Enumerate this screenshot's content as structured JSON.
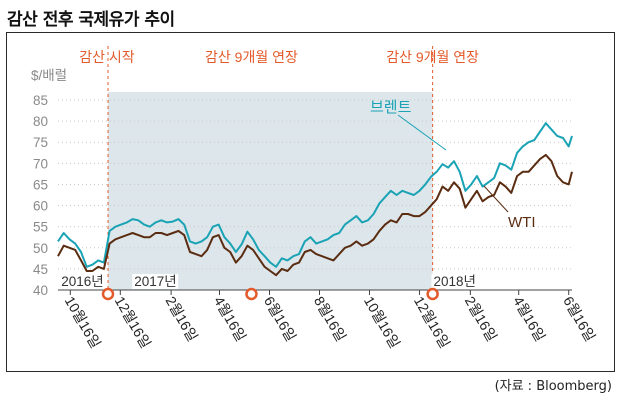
{
  "header": {
    "title": "감산 전후 국제유가 추이"
  },
  "source": "(자료 : Bloomberg)",
  "colors": {
    "brent": "#1aa3b5",
    "wti": "#5a2d12",
    "shade": "#dde6ea",
    "event": "#e35a2b",
    "grid": "#c9c9c9"
  },
  "chart_data": {
    "type": "line",
    "title": "감산 전후 국제유가 추이",
    "ylabel": "$/배럴",
    "ylim": [
      40,
      85
    ],
    "yticks": [
      40,
      45,
      50,
      55,
      60,
      65,
      70,
      75,
      80,
      85
    ],
    "grid": "horizontal dotted",
    "xlim": [
      "2016-10-01",
      "2018-06-20"
    ],
    "xticks": [
      {
        "date": "2016-10-16",
        "label": "10월16일"
      },
      {
        "date": "2016-12-16",
        "label": "12월16일"
      },
      {
        "date": "2017-02-16",
        "label": "2월16일"
      },
      {
        "date": "2017-04-16",
        "label": "4월16일"
      },
      {
        "date": "2017-06-16",
        "label": "6월16일"
      },
      {
        "date": "2017-08-16",
        "label": "8월16일"
      },
      {
        "date": "2017-10-16",
        "label": "10월16일"
      },
      {
        "date": "2017-12-16",
        "label": "12월16일"
      },
      {
        "date": "2018-02-16",
        "label": "2월16일"
      },
      {
        "date": "2018-04-16",
        "label": "4월16일"
      },
      {
        "date": "2018-06-16",
        "label": "6월16일"
      }
    ],
    "year_labels": [
      {
        "date": "2016-10-05",
        "label": "2016년"
      },
      {
        "date": "2017-01-02",
        "label": "2017년"
      },
      {
        "date": "2018-01-02",
        "label": "2018년"
      }
    ],
    "shaded_range": [
      "2016-12-01",
      "2018-01-01"
    ],
    "events": [
      {
        "date": "2016-12-01",
        "label": "감산 시작"
      },
      {
        "date": "2017-05-25",
        "label": "감산 9개월 연장"
      },
      {
        "date": "2018-01-01",
        "label": "감산 9개월 연장"
      }
    ],
    "series": [
      {
        "name": "브렌트",
        "dates": [
          "2016-10-01",
          "2016-10-08",
          "2016-10-15",
          "2016-10-22",
          "2016-10-29",
          "2016-11-05",
          "2016-11-12",
          "2016-11-19",
          "2016-11-26",
          "2016-12-03",
          "2016-12-10",
          "2016-12-17",
          "2016-12-24",
          "2016-12-31",
          "2017-01-07",
          "2017-01-14",
          "2017-01-21",
          "2017-01-28",
          "2017-02-04",
          "2017-02-11",
          "2017-02-18",
          "2017-02-25",
          "2017-03-04",
          "2017-03-11",
          "2017-03-18",
          "2017-03-25",
          "2017-04-01",
          "2017-04-08",
          "2017-04-15",
          "2017-04-22",
          "2017-04-29",
          "2017-05-06",
          "2017-05-13",
          "2017-05-20",
          "2017-05-27",
          "2017-06-03",
          "2017-06-10",
          "2017-06-17",
          "2017-06-24",
          "2017-07-01",
          "2017-07-08",
          "2017-07-15",
          "2017-07-22",
          "2017-07-29",
          "2017-08-05",
          "2017-08-12",
          "2017-08-19",
          "2017-08-26",
          "2017-09-02",
          "2017-09-09",
          "2017-09-16",
          "2017-09-23",
          "2017-09-30",
          "2017-10-07",
          "2017-10-14",
          "2017-10-21",
          "2017-10-28",
          "2017-11-04",
          "2017-11-11",
          "2017-11-18",
          "2017-11-25",
          "2017-12-02",
          "2017-12-09",
          "2017-12-16",
          "2017-12-23",
          "2017-12-30",
          "2018-01-06",
          "2018-01-13",
          "2018-01-20",
          "2018-01-27",
          "2018-02-03",
          "2018-02-10",
          "2018-02-17",
          "2018-02-24",
          "2018-03-03",
          "2018-03-10",
          "2018-03-17",
          "2018-03-24",
          "2018-03-31",
          "2018-04-07",
          "2018-04-14",
          "2018-04-21",
          "2018-04-28",
          "2018-05-05",
          "2018-05-12",
          "2018-05-19",
          "2018-05-26",
          "2018-06-02",
          "2018-06-09",
          "2018-06-16",
          "2018-06-20"
        ],
        "values": [
          51.5,
          53.5,
          52.0,
          51.0,
          49.0,
          45.5,
          46.0,
          47.0,
          46.5,
          54.0,
          55.0,
          55.5,
          56.0,
          56.8,
          56.5,
          55.5,
          55.0,
          56.0,
          56.5,
          56.0,
          56.2,
          56.8,
          55.5,
          51.5,
          51.0,
          51.5,
          52.5,
          55.0,
          55.5,
          52.5,
          51.0,
          49.0,
          50.8,
          53.8,
          52.0,
          49.5,
          48.0,
          46.5,
          45.5,
          47.5,
          47.0,
          48.0,
          48.5,
          51.5,
          52.5,
          51.0,
          51.5,
          52.0,
          53.0,
          53.5,
          55.5,
          56.5,
          57.5,
          56.0,
          56.5,
          58.0,
          60.5,
          62.0,
          63.5,
          62.5,
          63.5,
          63.0,
          62.5,
          63.5,
          65.0,
          66.8,
          68.0,
          69.8,
          69.0,
          70.5,
          68.0,
          63.5,
          65.0,
          67.0,
          64.5,
          65.5,
          66.5,
          70.0,
          69.5,
          68.5,
          72.5,
          74.0,
          75.0,
          75.5,
          77.5,
          79.5,
          78.0,
          76.5,
          76.0,
          74.0,
          76.5
        ]
      },
      {
        "name": "WTI",
        "dates": [
          "2016-10-01",
          "2016-10-08",
          "2016-10-15",
          "2016-10-22",
          "2016-10-29",
          "2016-11-05",
          "2016-11-12",
          "2016-11-19",
          "2016-11-26",
          "2016-12-03",
          "2016-12-10",
          "2016-12-17",
          "2016-12-24",
          "2016-12-31",
          "2017-01-07",
          "2017-01-14",
          "2017-01-21",
          "2017-01-28",
          "2017-02-04",
          "2017-02-11",
          "2017-02-18",
          "2017-02-25",
          "2017-03-04",
          "2017-03-11",
          "2017-03-18",
          "2017-03-25",
          "2017-04-01",
          "2017-04-08",
          "2017-04-15",
          "2017-04-22",
          "2017-04-29",
          "2017-05-06",
          "2017-05-13",
          "2017-05-20",
          "2017-05-27",
          "2017-06-03",
          "2017-06-10",
          "2017-06-17",
          "2017-06-24",
          "2017-07-01",
          "2017-07-08",
          "2017-07-15",
          "2017-07-22",
          "2017-07-29",
          "2017-08-05",
          "2017-08-12",
          "2017-08-19",
          "2017-08-26",
          "2017-09-02",
          "2017-09-09",
          "2017-09-16",
          "2017-09-23",
          "2017-09-30",
          "2017-10-07",
          "2017-10-14",
          "2017-10-21",
          "2017-10-28",
          "2017-11-04",
          "2017-11-11",
          "2017-11-18",
          "2017-11-25",
          "2017-12-02",
          "2017-12-09",
          "2017-12-16",
          "2017-12-23",
          "2017-12-30",
          "2018-01-06",
          "2018-01-13",
          "2018-01-20",
          "2018-01-27",
          "2018-02-03",
          "2018-02-10",
          "2018-02-17",
          "2018-02-24",
          "2018-03-03",
          "2018-03-10",
          "2018-03-17",
          "2018-03-24",
          "2018-03-31",
          "2018-04-07",
          "2018-04-14",
          "2018-04-21",
          "2018-04-28",
          "2018-05-05",
          "2018-05-12",
          "2018-05-19",
          "2018-05-26",
          "2018-06-02",
          "2018-06-09",
          "2018-06-16",
          "2018-06-20"
        ],
        "values": [
          48.0,
          50.5,
          50.0,
          49.5,
          47.0,
          44.5,
          44.5,
          45.5,
          45.0,
          51.0,
          52.0,
          52.5,
          53.0,
          53.5,
          53.0,
          52.5,
          52.5,
          53.5,
          53.5,
          53.0,
          53.5,
          54.0,
          53.0,
          49.0,
          48.5,
          48.0,
          49.5,
          52.5,
          53.0,
          50.0,
          49.0,
          46.5,
          48.0,
          50.5,
          49.5,
          47.5,
          45.5,
          44.5,
          43.5,
          45.0,
          44.5,
          46.0,
          46.5,
          49.0,
          49.5,
          48.5,
          48.0,
          47.5,
          47.0,
          48.5,
          50.0,
          50.5,
          51.5,
          50.5,
          51.0,
          52.0,
          54.0,
          55.5,
          56.5,
          56.0,
          58.0,
          58.0,
          57.5,
          57.5,
          58.5,
          60.0,
          61.5,
          64.5,
          63.5,
          65.5,
          64.0,
          59.5,
          61.5,
          63.5,
          61.0,
          62.0,
          62.5,
          65.5,
          64.5,
          63.0,
          67.0,
          68.0,
          68.0,
          69.5,
          71.0,
          72.0,
          70.5,
          67.0,
          65.5,
          65.0,
          68.0
        ]
      }
    ],
    "annotations": [
      {
        "series": "브렌트",
        "label": "브렌트"
      },
      {
        "series": "WTI",
        "label": "WTI"
      }
    ]
  }
}
